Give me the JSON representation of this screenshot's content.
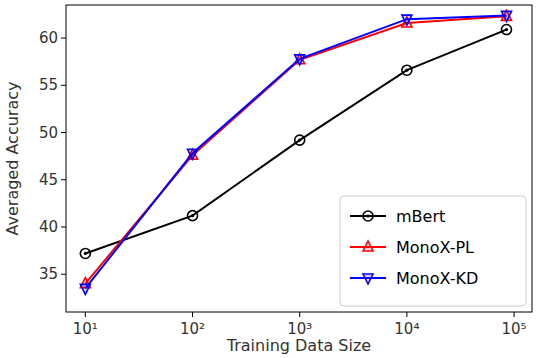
{
  "chart_data": {
    "type": "line",
    "x_label": "Training Data Size",
    "y_label": "Averaged Accuracy",
    "log": "x",
    "grid": false,
    "legend": "lower right",
    "x": [
      10,
      100,
      1000,
      10000,
      85000
    ],
    "xlim": [
      6.6,
      147000
    ],
    "xticks": [
      {
        "value": 10,
        "label": "10¹"
      },
      {
        "value": 100,
        "label": "10²"
      },
      {
        "value": 1000,
        "label": "10³"
      },
      {
        "value": 10000,
        "label": "10⁴"
      },
      {
        "value": 100000,
        "label": "10⁵"
      }
    ],
    "ylim": [
      31,
      63.5
    ],
    "yticks": [
      35,
      40,
      45,
      50,
      55,
      60
    ],
    "series": [
      {
        "name": "mBert",
        "color": "#000000",
        "marker": "circle",
        "values": [
          37.2,
          41.2,
          49.2,
          56.6,
          60.9
        ]
      },
      {
        "name": "MonoX-PL",
        "color": "#ff0000",
        "marker": "triangle-up",
        "values": [
          34.0,
          47.6,
          57.7,
          61.6,
          62.3
        ]
      },
      {
        "name": "MonoX-KD",
        "color": "#0000ff",
        "marker": "triangle-down",
        "values": [
          33.5,
          47.8,
          57.8,
          62.0,
          62.4
        ]
      }
    ]
  }
}
